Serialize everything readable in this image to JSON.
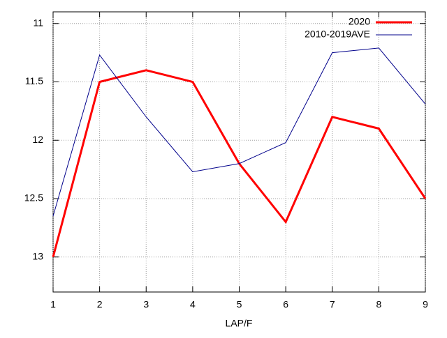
{
  "chart_data": {
    "type": "line",
    "x_label": "LAP/F",
    "x": [
      1,
      2,
      3,
      4,
      5,
      6,
      7,
      8,
      9
    ],
    "series": [
      {
        "name": "2020",
        "color": "#ff0000",
        "values": [
          13.0,
          11.5,
          11.4,
          11.5,
          12.2,
          12.7,
          11.8,
          11.9,
          12.5
        ]
      },
      {
        "name": "2010-2019AVE",
        "color": "#00008b",
        "values": [
          12.65,
          11.27,
          11.8,
          12.27,
          12.2,
          12.02,
          11.25,
          11.21,
          11.69
        ]
      }
    ],
    "xlim": [
      1,
      9
    ],
    "xticks": [
      1,
      2,
      3,
      4,
      5,
      6,
      7,
      8,
      9
    ],
    "ylim": [
      13.3,
      10.9
    ],
    "yticks": [
      11,
      11.5,
      12,
      12.5,
      13
    ],
    "grid": true,
    "legend": "top-right"
  }
}
